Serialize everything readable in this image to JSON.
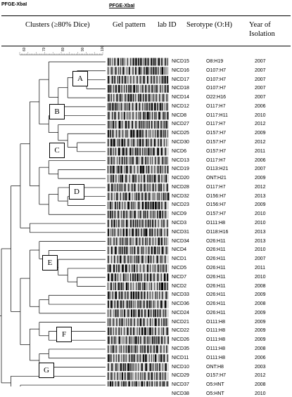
{
  "top_labels": {
    "left": "PFGE-XbaI",
    "center": "PFGE-XbaI"
  },
  "header": {
    "clusters": "Clusters (≥80% Dice)",
    "gel": "Gel pattern",
    "lab_id": "lab ID",
    "serotype": "Serotype (O:H)",
    "year": "Year of Isolation"
  },
  "scale_ticks": [
    "60",
    "70",
    "80",
    "90",
    "100"
  ],
  "cluster_labels": [
    "A",
    "B",
    "C",
    "D",
    "E",
    "F",
    "G"
  ],
  "rows": [
    {
      "id": "NICD15",
      "serotype": "O8:H19",
      "year": "2007"
    },
    {
      "id": "NICD16",
      "serotype": "O107:H7",
      "year": "2007"
    },
    {
      "id": "NICD17",
      "serotype": "O107:H7",
      "year": "2007"
    },
    {
      "id": "NICD18",
      "serotype": "O107:H7",
      "year": "2007"
    },
    {
      "id": "NICD14",
      "serotype": "O22:H16",
      "year": "2007"
    },
    {
      "id": "NICD12",
      "serotype": "O117:H7",
      "year": "2006"
    },
    {
      "id": "NICD8",
      "serotype": "O117:H11",
      "year": "2010"
    },
    {
      "id": "NICD27",
      "serotype": "O117:H7",
      "year": "2012"
    },
    {
      "id": "NICD25",
      "serotype": "O157:H7",
      "year": "2009"
    },
    {
      "id": "NICD30",
      "serotype": "O157:H7",
      "year": "2012"
    },
    {
      "id": "NICD6",
      "serotype": "O157:H7",
      "year": "2011"
    },
    {
      "id": "NICD13",
      "serotype": "O117:H7",
      "year": "2006"
    },
    {
      "id": "NICD19",
      "serotype": "O113:H21",
      "year": "2007"
    },
    {
      "id": "NICD20",
      "serotype": "ONT:H21",
      "year": "2009"
    },
    {
      "id": "NICD28",
      "serotype": "O117:H7",
      "year": "2012"
    },
    {
      "id": "NICD32",
      "serotype": "O156:H7",
      "year": "2013"
    },
    {
      "id": "NICD23",
      "serotype": "O156:H7",
      "year": "2009"
    },
    {
      "id": "NICD9",
      "serotype": "O157:H7",
      "year": "2010"
    },
    {
      "id": "NICD3",
      "serotype": "O111:H8",
      "year": "2010"
    },
    {
      "id": "NICD31",
      "serotype": "O118:H16",
      "year": "2013"
    },
    {
      "id": "NICD34",
      "serotype": "O26:H11",
      "year": "2013"
    },
    {
      "id": "NICD4",
      "serotype": "O26:H11",
      "year": "2010"
    },
    {
      "id": "NICD1",
      "serotype": "O26:H11",
      "year": "2007"
    },
    {
      "id": "NICD5",
      "serotype": "O26:H11",
      "year": "2011"
    },
    {
      "id": "NICD7",
      "serotype": "O26:H11",
      "year": "2010"
    },
    {
      "id": "NICD2",
      "serotype": "O26:H11",
      "year": "2008"
    },
    {
      "id": "NICD33",
      "serotype": "O26:H11",
      "year": "2009"
    },
    {
      "id": "NICD36",
      "serotype": "O26:H11",
      "year": "2008"
    },
    {
      "id": "NICD24",
      "serotype": "O26:H11",
      "year": "2009"
    },
    {
      "id": "NICD21",
      "serotype": "O111:H8",
      "year": "2009"
    },
    {
      "id": "NICD22",
      "serotype": "O111:H8",
      "year": "2009"
    },
    {
      "id": "NICD26",
      "serotype": "O111:H8",
      "year": "2009"
    },
    {
      "id": "NICD35",
      "serotype": "O111:H8",
      "year": "2008"
    },
    {
      "id": "NICD11",
      "serotype": "O111:H8",
      "year": "2006"
    },
    {
      "id": "NICD10",
      "serotype": "ONT:H8",
      "year": "2003"
    },
    {
      "id": "NICD29",
      "serotype": "O157:H7",
      "year": "2012"
    },
    {
      "id": "NICD37",
      "serotype": "O5:HNT",
      "year": "2008"
    },
    {
      "id": "NICD38",
      "serotype": "O5:HNT",
      "year": "2010"
    }
  ]
}
